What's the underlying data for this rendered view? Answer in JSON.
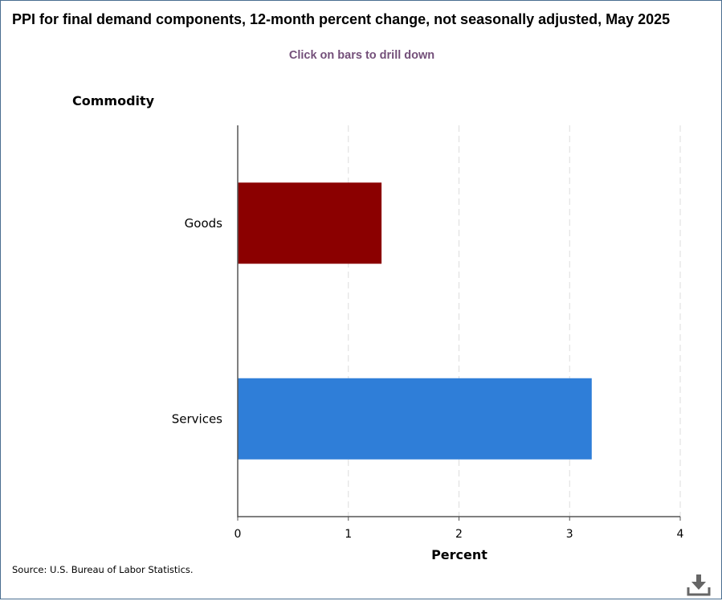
{
  "chart_data": {
    "type": "bar",
    "orientation": "horizontal",
    "title": "PPI for final demand components, 12-month percent change, not seasonally adjusted, May 2025",
    "subtitle": "Click on bars to drill down",
    "ylabel": "Commodity",
    "xlabel": "Percent",
    "categories": [
      "Goods",
      "Services"
    ],
    "values": [
      1.3,
      3.2
    ],
    "colors": [
      "#8b0000",
      "#2f7ed8"
    ],
    "xlim": [
      0,
      4
    ],
    "xticks": [
      "0",
      "1",
      "2",
      "3",
      "4"
    ],
    "grid": true,
    "legend": "none"
  },
  "source": "Source: U.S. Bureau of Labor Statistics.",
  "download_icon": "download-icon"
}
